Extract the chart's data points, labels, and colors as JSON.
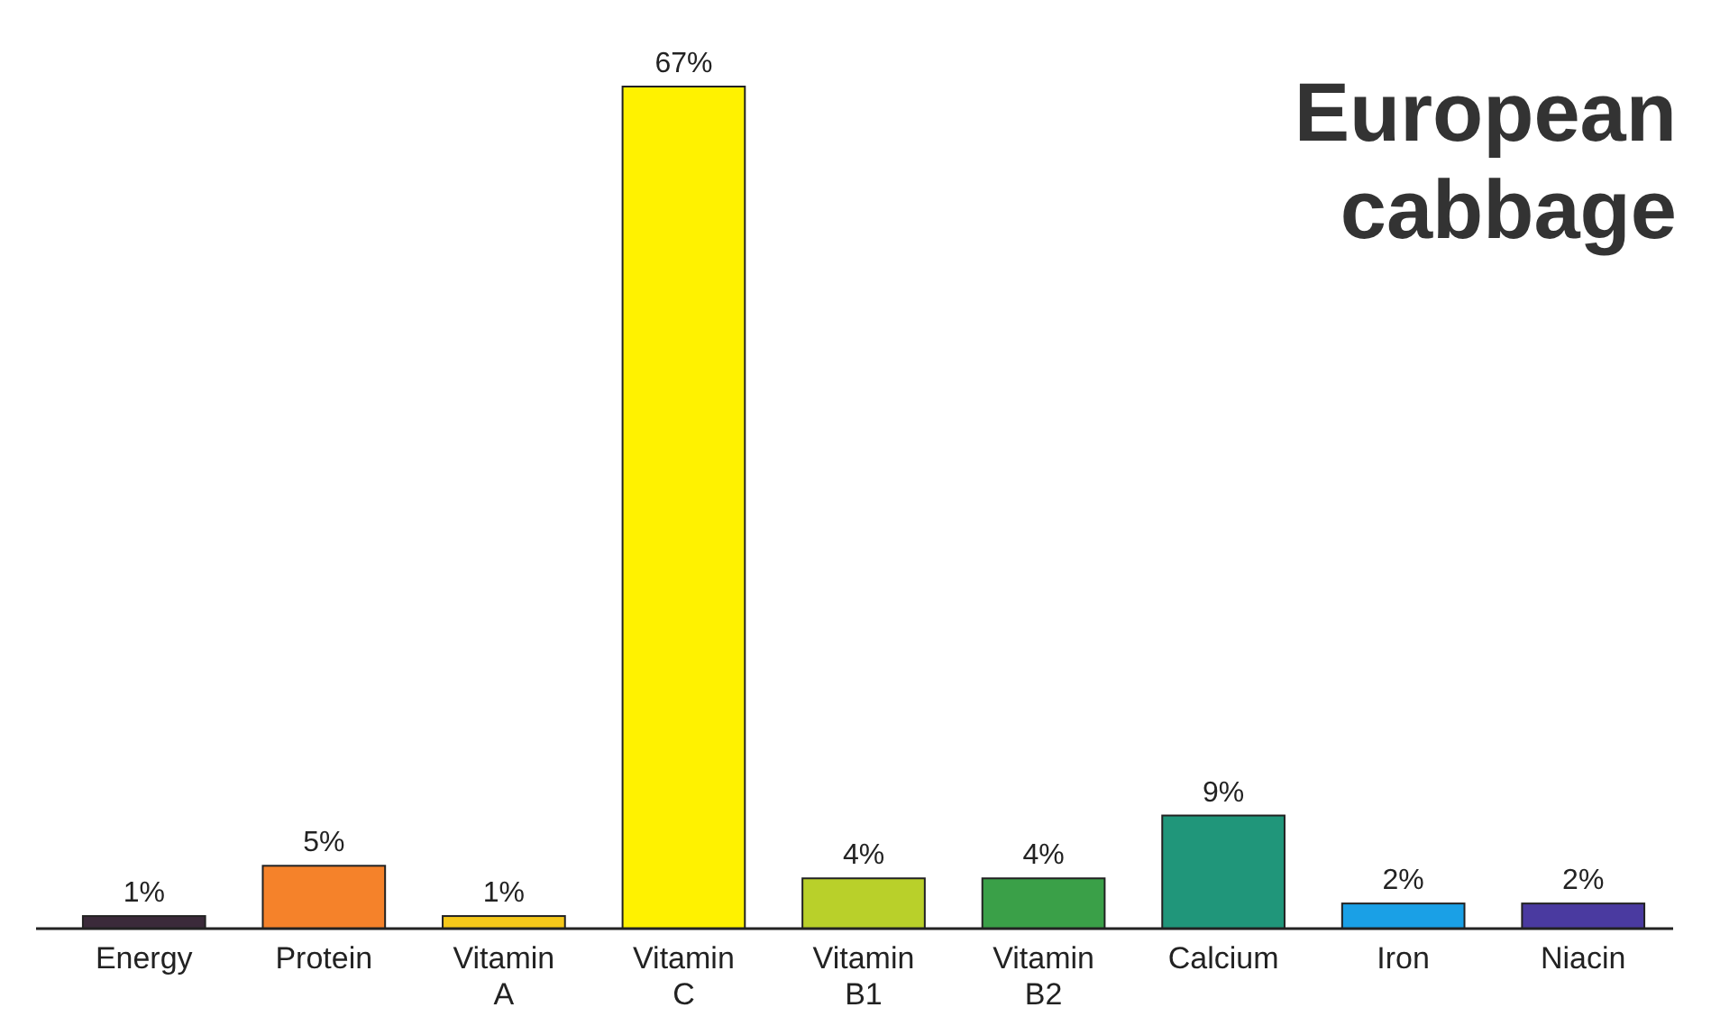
{
  "chart_data": {
    "type": "bar",
    "title": "European cabbage",
    "categories": [
      "Energy",
      "Protein",
      "Vitamin A",
      "Vitamin C",
      "Vitamin B1",
      "Vitamin B2",
      "Calcium",
      "Iron",
      "Niacin"
    ],
    "values": [
      1,
      5,
      1,
      67,
      4,
      4,
      9,
      2,
      2
    ],
    "colors": [
      "#3b2a3a",
      "#f5822a",
      "#f5c81a",
      "#fff200",
      "#b9d02a",
      "#3aa048",
      "#20967a",
      "#1aa0e6",
      "#4a3aa0"
    ],
    "data_labels": true,
    "value_labels": [
      "1%",
      "5%",
      "1%",
      "67%",
      "4%",
      "4%",
      "9%",
      "2%",
      "2%"
    ]
  }
}
